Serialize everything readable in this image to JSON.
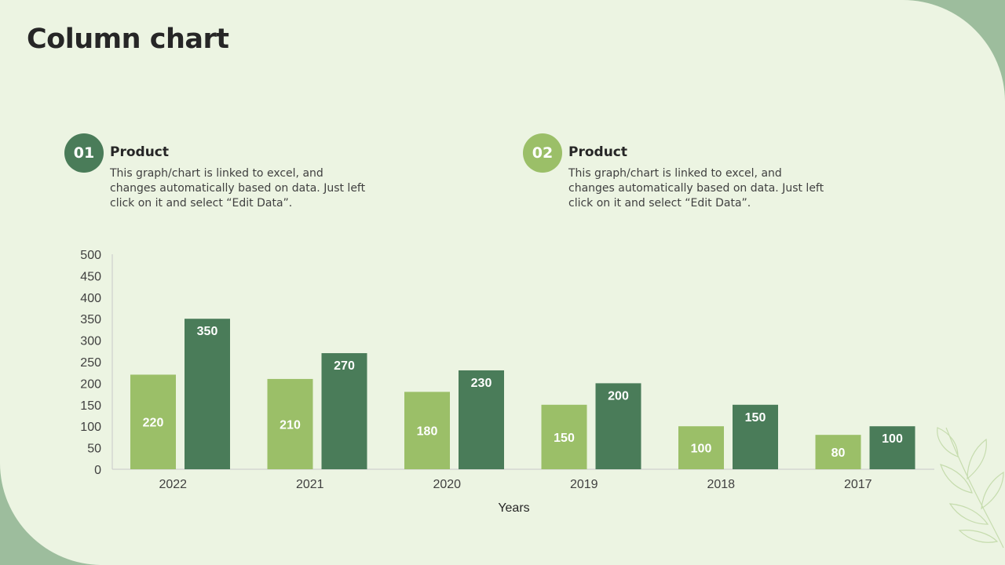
{
  "page": {
    "title": "Column chart"
  },
  "legend": [
    {
      "number": "01",
      "title": "Product",
      "description": "This graph/chart is linked to excel, and changes automatically based on data. Just left click on it and select “Edit Data”.",
      "color": "#4a7c59"
    },
    {
      "number": "02",
      "title": "Product",
      "description": "This graph/chart is linked to excel, and changes automatically based on data. Just left click on it and select “Edit Data”.",
      "color": "#9bbf68"
    }
  ],
  "chart_data": {
    "type": "bar",
    "categories": [
      "2022",
      "2021",
      "2020",
      "2019",
      "2018",
      "2017"
    ],
    "series": [
      {
        "values": [
          220,
          210,
          180,
          150,
          100,
          80
        ],
        "color": "#9bbf68"
      },
      {
        "values": [
          350,
          270,
          230,
          200,
          150,
          100
        ],
        "color": "#4a7c59"
      }
    ],
    "xlabel": "Years",
    "ylabel": "",
    "ylim": [
      0,
      500
    ],
    "yticks": [
      0,
      50,
      100,
      150,
      200,
      250,
      300,
      350,
      400,
      450,
      500
    ],
    "data_labels": true,
    "grid": false
  }
}
